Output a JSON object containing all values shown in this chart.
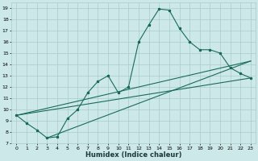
{
  "xlabel": "Humidex (Indice chaleur)",
  "bg_color": "#cce8e8",
  "grid_color": "#aacccc",
  "line_color": "#1a6b5a",
  "xlim": [
    -0.5,
    23.5
  ],
  "ylim": [
    7,
    19.5
  ],
  "xticks": [
    0,
    1,
    2,
    3,
    4,
    5,
    6,
    7,
    8,
    9,
    10,
    11,
    12,
    13,
    14,
    15,
    16,
    17,
    18,
    19,
    20,
    21,
    22,
    23
  ],
  "yticks": [
    7,
    8,
    9,
    10,
    11,
    12,
    13,
    14,
    15,
    16,
    17,
    18,
    19
  ],
  "series1_x": [
    0,
    1,
    2,
    3,
    4,
    5,
    6,
    7,
    8,
    9,
    10,
    11,
    12,
    13,
    14,
    15,
    16,
    17,
    18,
    19,
    20,
    21,
    22,
    23
  ],
  "series1_y": [
    9.5,
    8.8,
    8.2,
    7.5,
    7.6,
    9.2,
    10.0,
    11.5,
    12.5,
    13.0,
    11.5,
    12.0,
    16.0,
    17.5,
    18.9,
    18.8,
    17.2,
    16.0,
    15.3,
    15.3,
    15.0,
    13.7,
    13.2,
    12.8
  ],
  "series2_x": [
    0,
    23
  ],
  "series2_y": [
    9.5,
    12.8
  ],
  "series3_x": [
    0,
    23
  ],
  "series3_y": [
    9.5,
    14.3
  ],
  "series4_x": [
    3,
    23
  ],
  "series4_y": [
    7.5,
    14.3
  ]
}
